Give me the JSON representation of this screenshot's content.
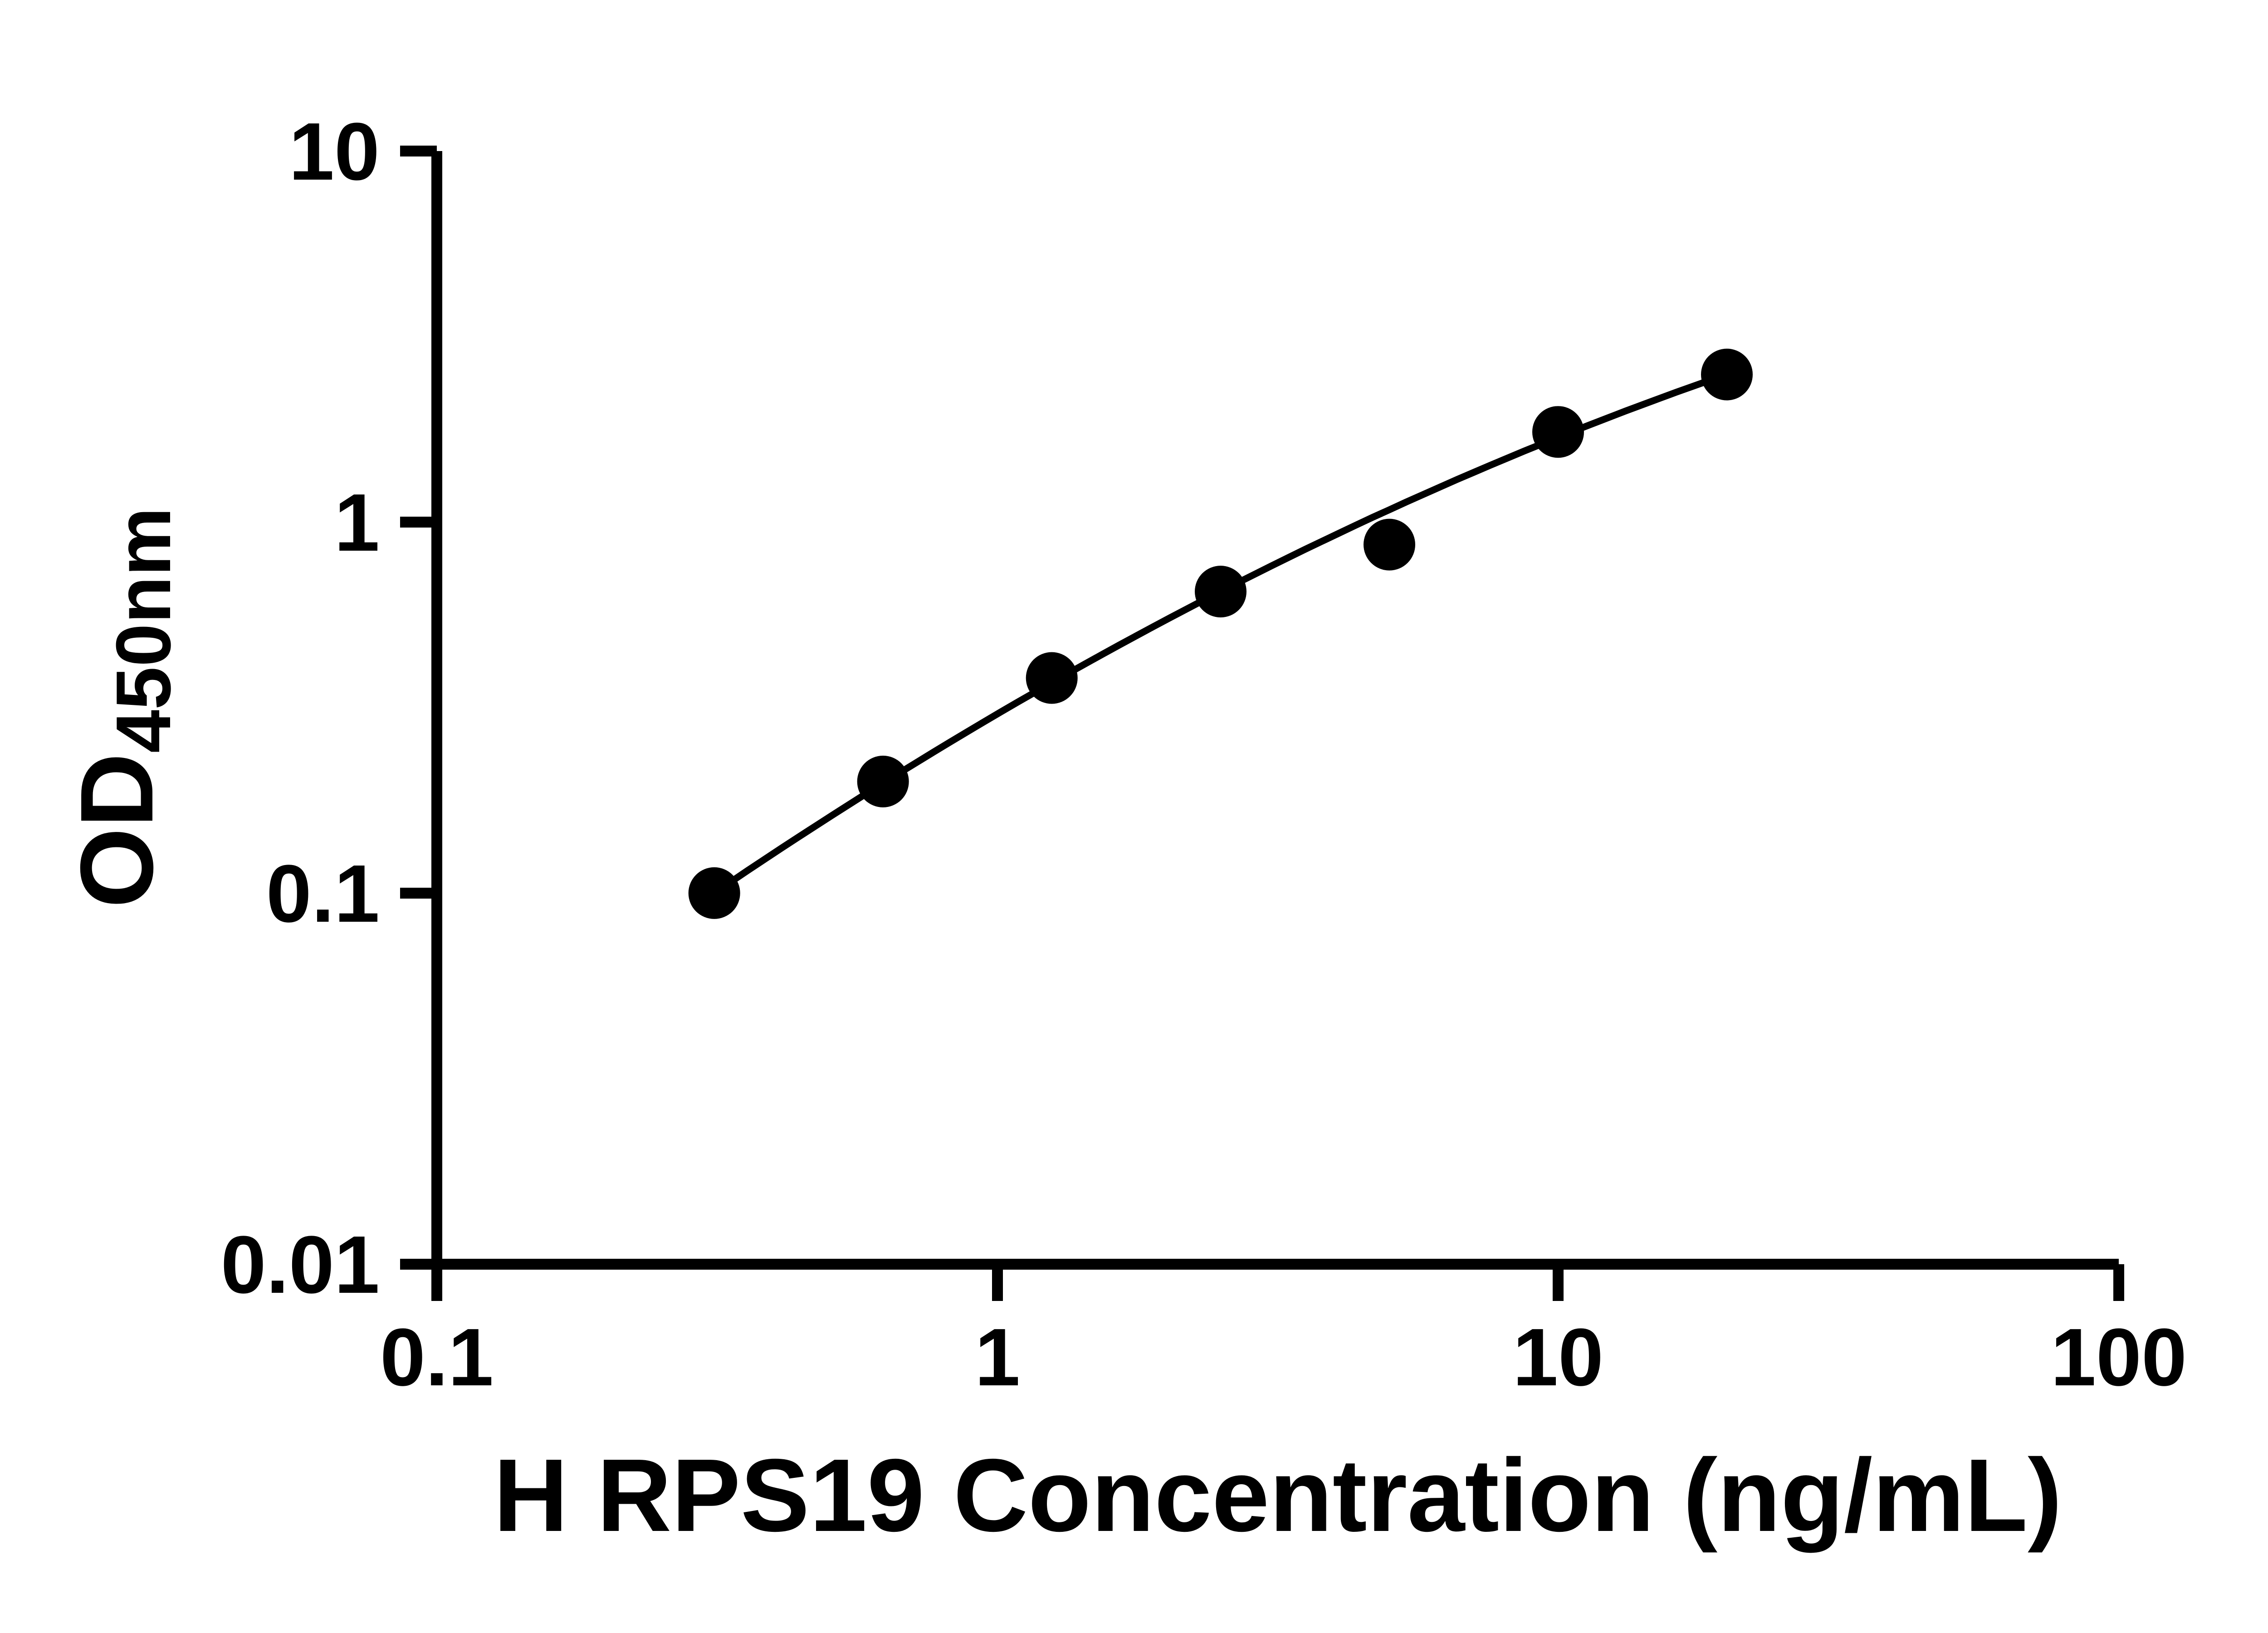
{
  "figure": {
    "background_color": "#ffffff",
    "axis_color": "#000000",
    "text_color": "#000000"
  },
  "chart_data": {
    "type": "scatter",
    "title": "",
    "xlabel": "H RPS19 Concentration (ng/mL)",
    "ylabel_main": "OD",
    "ylabel_sub": "450nm",
    "x_scale": "log",
    "y_scale": "log",
    "xlim": [
      0.1,
      100
    ],
    "ylim": [
      0.01,
      10
    ],
    "x_ticks": [
      0.1,
      1,
      10,
      100
    ],
    "x_tick_labels": [
      "0.1",
      "1",
      "10",
      "100"
    ],
    "y_ticks": [
      0.01,
      0.1,
      1,
      10
    ],
    "y_tick_labels": [
      "0.01",
      "0.1",
      "1",
      "10"
    ],
    "grid": false,
    "legend": false,
    "marker_color": "#000000",
    "line_color": "#000000",
    "points": [
      {
        "x": 0.3125,
        "y": 0.1
      },
      {
        "x": 0.625,
        "y": 0.2
      },
      {
        "x": 1.25,
        "y": 0.38
      },
      {
        "x": 2.5,
        "y": 0.65
      },
      {
        "x": 5,
        "y": 0.87
      },
      {
        "x": 10,
        "y": 1.75
      },
      {
        "x": 20,
        "y": 2.5
      }
    ],
    "fit_curve": {
      "type": "quadratic_loglog",
      "a": -0.517,
      "b": 0.885,
      "c": -0.1395,
      "x_range": [
        0.3125,
        20
      ]
    }
  }
}
